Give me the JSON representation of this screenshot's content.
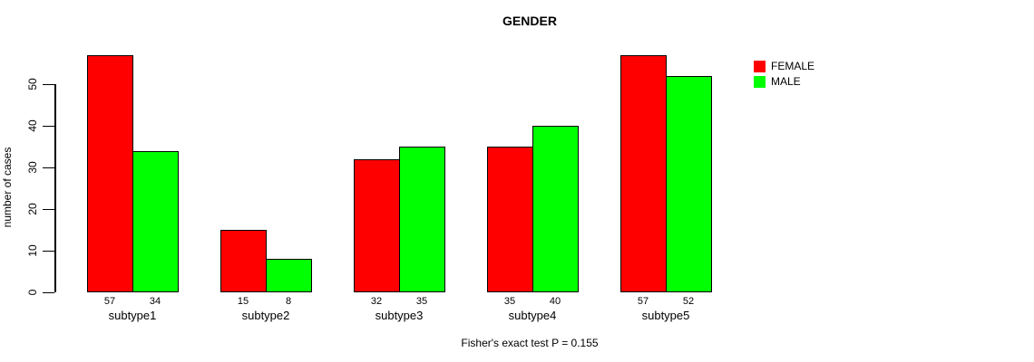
{
  "chart_data": {
    "type": "bar",
    "title": "GENDER",
    "ylabel": "number of cases",
    "xlabel": "",
    "caption": "Fisher's exact test P = 0.155",
    "categories": [
      "subtype1",
      "subtype2",
      "subtype3",
      "subtype4",
      "subtype5"
    ],
    "series": [
      {
        "name": "FEMALE",
        "color": "#ff0000",
        "values": [
          57,
          15,
          32,
          35,
          57
        ]
      },
      {
        "name": "MALE",
        "color": "#00ff00",
        "values": [
          34,
          8,
          35,
          40,
          52
        ]
      }
    ],
    "bar_value_labels": [
      [
        "57",
        "34"
      ],
      [
        "15",
        "8"
      ],
      [
        "32",
        "35"
      ],
      [
        "35",
        "40"
      ],
      [
        "57",
        "52"
      ]
    ],
    "y_ticks": [
      0,
      10,
      20,
      30,
      40,
      50
    ],
    "ylim": [
      0,
      57.5
    ],
    "grid": false,
    "legend_position": "top-right",
    "bar_border_color": "#000000",
    "background_color": "#ffffff"
  }
}
